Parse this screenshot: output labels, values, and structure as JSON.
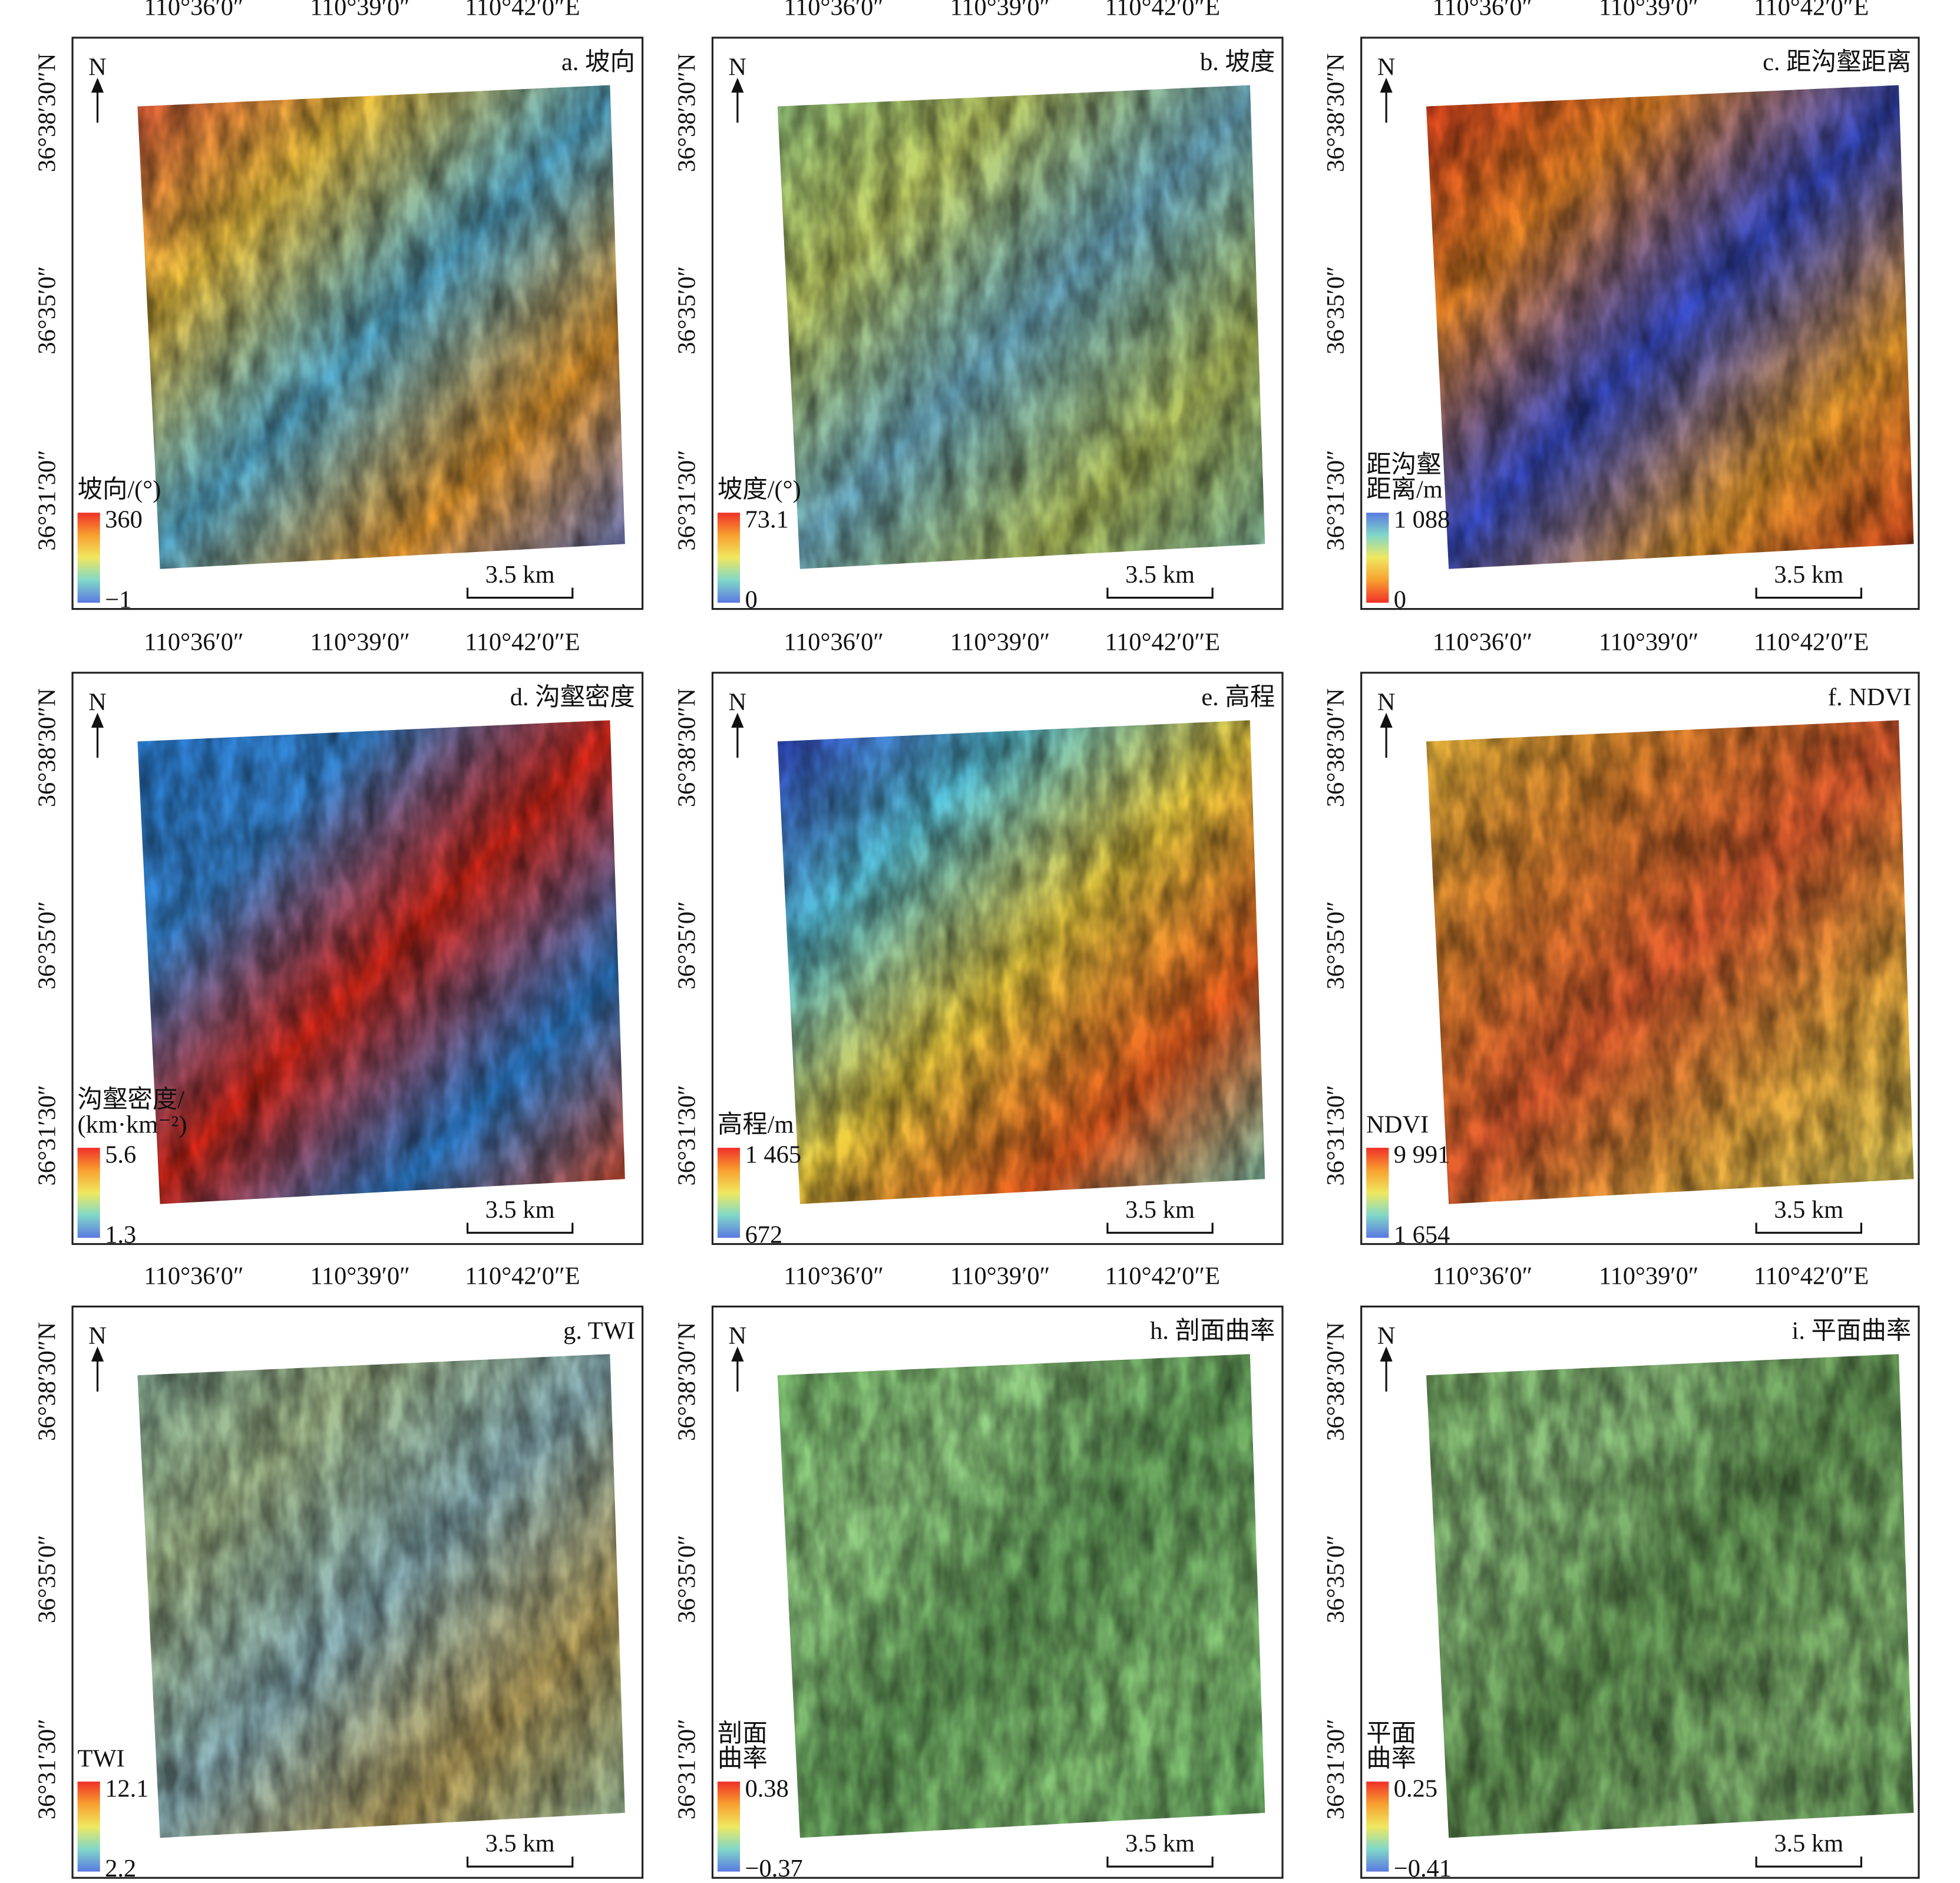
{
  "lon_labels": [
    "110°36′0″",
    "110°39′0″",
    "110°42′0″E"
  ],
  "lat_labels": [
    "36°38′30″N",
    "36°35′0″",
    "36°31′30″"
  ],
  "north": "N",
  "scale_bar": "3.5 km",
  "panels": [
    {
      "title": "a. 坡向",
      "legend_title": [
        "坡向/(°)"
      ],
      "legend_max": "360",
      "legend_min": "−1"
    },
    {
      "title": "b. 坡度",
      "legend_title": [
        "坡度/(°)"
      ],
      "legend_max": "73.1",
      "legend_min": "0"
    },
    {
      "title": "c. 距沟壑距离",
      "legend_title": [
        "距沟壑",
        "距离/m"
      ],
      "legend_max": "1 088",
      "legend_min": "0"
    },
    {
      "title": "d. 沟壑密度",
      "legend_title": [
        "沟壑密度/",
        "(km·km⁻²)"
      ],
      "legend_max": "5.6",
      "legend_min": "1.3"
    },
    {
      "title": "e. 高程",
      "legend_title": [
        "高程/m"
      ],
      "legend_max": "1 465",
      "legend_min": "672"
    },
    {
      "title": "f. NDVI",
      "legend_title": [
        "NDVI"
      ],
      "legend_max": "9 991",
      "legend_min": "1 654"
    },
    {
      "title": "g. TWI",
      "legend_title": [
        "TWI"
      ],
      "legend_max": "12.1",
      "legend_min": "2.2"
    },
    {
      "title": "h. 剖面曲率",
      "legend_title": [
        "剖面",
        "曲率"
      ],
      "legend_max": "0.38",
      "legend_min": "−0.37"
    },
    {
      "title": "i. 平面曲率",
      "legend_title": [
        "平面",
        "曲率"
      ],
      "legend_max": "0.25",
      "legend_min": "−0.41"
    }
  ]
}
